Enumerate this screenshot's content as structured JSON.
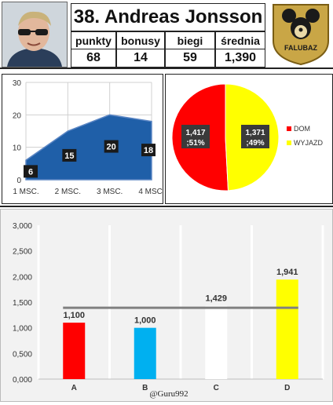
{
  "header": {
    "title": "38. Andreas Jonsson",
    "stats": [
      {
        "label": "punkty",
        "value": "68"
      },
      {
        "label": "bonusy",
        "value": "14"
      },
      {
        "label": "biegi",
        "value": "59"
      },
      {
        "label": "średnia",
        "value": "1,390"
      }
    ],
    "logo_text": "FALUBAZ"
  },
  "credit": "@Guru992",
  "colors": {
    "area_fill": "#1f5fa8",
    "dom": "#ff0000",
    "wyjazd": "#ffff00",
    "bar_a": "#ff0000",
    "bar_b": "#00b0f0",
    "bar_c": "#ffffff",
    "bar_d": "#ffff00",
    "avg_line": "#808080"
  },
  "chart_data": [
    {
      "type": "area",
      "categories": [
        "1 MSC.",
        "2 MSC.",
        "3 MSC.",
        "4 MSC."
      ],
      "values": [
        6,
        15,
        20,
        18
      ],
      "data_labels": [
        "6",
        "15",
        "20",
        "18"
      ],
      "yticks": [
        "0",
        "10",
        "20",
        "30"
      ],
      "ylim": [
        0,
        30
      ],
      "grid": true
    },
    {
      "type": "pie",
      "slices": [
        {
          "name": "DOM",
          "value": 1.417,
          "percent": 51,
          "label_line1": "1,417",
          "label_line2": ";51%"
        },
        {
          "name": "WYJAZD",
          "value": 1.371,
          "percent": 49,
          "label_line1": "1,371",
          "label_line2": ";49%"
        }
      ],
      "legend": "right"
    },
    {
      "type": "bar",
      "categories": [
        "A",
        "B",
        "C",
        "D"
      ],
      "values": [
        1.1,
        1.0,
        1.429,
        1.941
      ],
      "data_labels": [
        "1,100",
        "1,000",
        "1,429",
        "1,941"
      ],
      "yticks": [
        "0,000",
        "0,500",
        "1,000",
        "1,500",
        "2,000",
        "2,500",
        "3,000"
      ],
      "ylim": [
        0,
        3
      ],
      "reference_line": 1.39,
      "grid": true
    }
  ]
}
